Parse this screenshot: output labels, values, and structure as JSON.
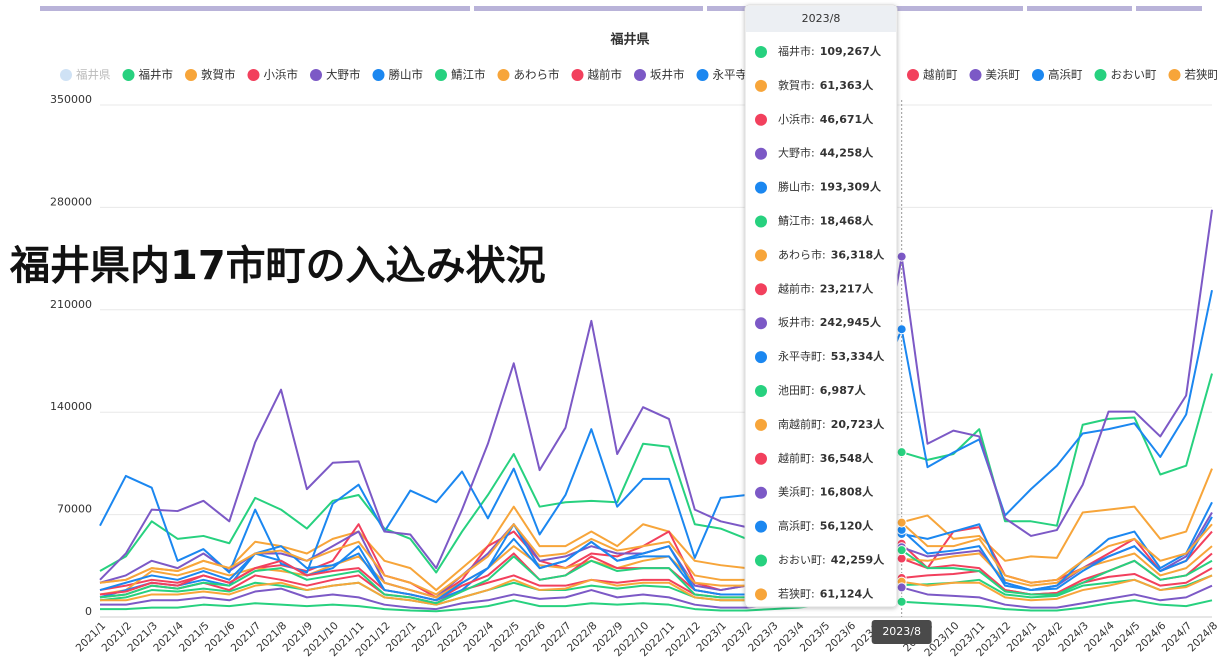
{
  "chart_data": {
    "type": "line",
    "title": "福井県",
    "annotation": "福井県内17市町の入込み状況",
    "categories": [
      "2021/1",
      "2021/2",
      "2021/3",
      "2021/4",
      "2021/5",
      "2021/6",
      "2021/7",
      "2021/8",
      "2021/9",
      "2021/10",
      "2021/11",
      "2021/12",
      "2022/1",
      "2022/2",
      "2022/3",
      "2022/4",
      "2022/5",
      "2022/6",
      "2022/7",
      "2022/8",
      "2022/9",
      "2022/10",
      "2022/11",
      "2022/12",
      "2023/1",
      "2023/2",
      "2023/3",
      "2023/4",
      "2023/5",
      "2023/6",
      "2023/7",
      "2023/8",
      "2023/9",
      "2023/10",
      "2023/11",
      "2023/12",
      "2024/1",
      "2024/2",
      "2024/3",
      "2024/4",
      "2024/5",
      "2024/6",
      "2024/7",
      "2024/8"
    ],
    "ylim": [
      0,
      350000
    ],
    "yticks": [
      0,
      70000,
      140000,
      210000,
      280000,
      350000
    ],
    "grid": true,
    "legend": {
      "position": "top",
      "hidden": [
        {
          "name": "福井県",
          "color": "#cfe2f5"
        }
      ]
    },
    "series": [
      {
        "name": "福井市",
        "color": "#27d17f",
        "values": [
          28000,
          38000,
          62000,
          50000,
          52000,
          47000,
          78000,
          70000,
          57000,
          76000,
          80000,
          57000,
          50000,
          27000,
          55000,
          80000,
          108000,
          72000,
          75000,
          76000,
          75000,
          115000,
          113000,
          60000,
          57000,
          50000,
          55000,
          70000,
          85000,
          95000,
          100000,
          109267,
          104000,
          108000,
          125000,
          62000,
          62000,
          59000,
          128000,
          132000,
          133000,
          94000,
          100000,
          163000
        ]
      },
      {
        "name": "敦賀市",
        "color": "#f7a53a",
        "values": [
          20000,
          22000,
          30000,
          28000,
          35000,
          30000,
          48000,
          45000,
          40000,
          50000,
          55000,
          35000,
          30000,
          15000,
          30000,
          45000,
          72000,
          45000,
          45000,
          55000,
          45000,
          60000,
          55000,
          35000,
          32000,
          30000,
          35000,
          40000,
          50000,
          55000,
          58000,
          61363,
          66000,
          50000,
          52000,
          35000,
          38000,
          37000,
          68000,
          70000,
          72000,
          50000,
          55000,
          98000
        ]
      },
      {
        "name": "小浜市",
        "color": "#f2405d",
        "values": [
          15000,
          18000,
          22000,
          20000,
          25000,
          20000,
          30000,
          32000,
          28000,
          35000,
          60000,
          25000,
          20000,
          10000,
          22000,
          45000,
          55000,
          35000,
          30000,
          40000,
          38000,
          45000,
          55000,
          20000,
          15000,
          18000,
          22000,
          25000,
          35000,
          40000,
          42000,
          46671,
          30000,
          55000,
          58000,
          25000,
          20000,
          22000,
          30000,
          40000,
          50000,
          28000,
          35000,
          55000
        ]
      },
      {
        "name": "大野市",
        "color": "#7c59c6",
        "values": [
          20000,
          25000,
          35000,
          30000,
          40000,
          28000,
          40000,
          40000,
          35000,
          45000,
          55000,
          20000,
          15000,
          10000,
          25000,
          40000,
          60000,
          35000,
          38000,
          45000,
          40000,
          40000,
          45000,
          18000,
          15000,
          18000,
          25000,
          30000,
          38000,
          40000,
          42000,
          44258,
          38000,
          40000,
          42000,
          20000,
          15000,
          18000,
          30000,
          38000,
          45000,
          28000,
          38000,
          68000
        ]
      },
      {
        "name": "勝山市",
        "color": "#1b87f0",
        "values": [
          59000,
          93000,
          85000,
          35000,
          43000,
          27000,
          70000,
          33000,
          27000,
          74000,
          87000,
          55000,
          83000,
          75000,
          96000,
          64000,
          98000,
          53000,
          80000,
          125000,
          72000,
          91000,
          91000,
          37000,
          78000,
          80000,
          82000,
          60000,
          100000,
          120000,
          150000,
          193309,
          99000,
          109000,
          118000,
          66000,
          84000,
          100000,
          122000,
          125000,
          129000,
          106000,
          135000,
          220000
        ]
      },
      {
        "name": "鯖江市",
        "color": "#27d17f",
        "values": [
          8000,
          10000,
          15000,
          14000,
          16000,
          14000,
          20000,
          18000,
          15000,
          18000,
          20000,
          10000,
          8000,
          5000,
          10000,
          15000,
          20000,
          15000,
          15000,
          18000,
          16000,
          18000,
          17000,
          10000,
          8000,
          8000,
          10000,
          12000,
          15000,
          16000,
          17000,
          18468,
          19000,
          20000,
          22000,
          12000,
          10000,
          11000,
          18000,
          20000,
          22000,
          15000,
          18000,
          25000
        ]
      },
      {
        "name": "あわら市",
        "color": "#f7a53a",
        "values": [
          12000,
          15000,
          28000,
          25000,
          30000,
          25000,
          30000,
          28000,
          25000,
          32000,
          38000,
          20000,
          15000,
          10000,
          20000,
          30000,
          45000,
          32000,
          30000,
          35000,
          30000,
          35000,
          38000,
          20000,
          18000,
          18000,
          22000,
          25000,
          30000,
          32000,
          34000,
          36318,
          35000,
          38000,
          40000,
          22000,
          18000,
          20000,
          30000,
          35000,
          40000,
          25000,
          30000,
          45000
        ]
      },
      {
        "name": "越前市",
        "color": "#f2405d",
        "values": [
          10000,
          12000,
          18000,
          16000,
          20000,
          15000,
          25000,
          22000,
          18000,
          22000,
          25000,
          12000,
          10000,
          6000,
          15000,
          20000,
          25000,
          18000,
          18000,
          22000,
          20000,
          22000,
          22000,
          12000,
          10000,
          10000,
          14000,
          16000,
          20000,
          22000,
          22000,
          23217,
          25000,
          26000,
          28000,
          15000,
          12000,
          13000,
          20000,
          24000,
          26000,
          18000,
          20000,
          30000
        ]
      },
      {
        "name": "坂井市",
        "color": "#7c59c6",
        "values": [
          22000,
          40000,
          70000,
          69000,
          76000,
          62000,
          116000,
          152000,
          84000,
          102000,
          103000,
          55000,
          53000,
          30000,
          70000,
          115000,
          170000,
          97000,
          126000,
          199000,
          108000,
          140000,
          132000,
          70000,
          62000,
          58000,
          60000,
          90000,
          150000,
          120000,
          140000,
          242945,
          115000,
          124000,
          120000,
          64000,
          52000,
          56000,
          87000,
          137000,
          137000,
          120000,
          148000,
          275000
        ]
      },
      {
        "name": "永平寺町",
        "color": "#1b87f0",
        "values": [
          10000,
          15000,
          20000,
          18000,
          22000,
          18000,
          40000,
          35000,
          25000,
          30000,
          45000,
          15000,
          12000,
          8000,
          15000,
          30000,
          60000,
          30000,
          35000,
          48000,
          35000,
          40000,
          45000,
          15000,
          12000,
          12000,
          18000,
          25000,
          35000,
          45000,
          50000,
          53334,
          50000,
          55000,
          60000,
          20000,
          15000,
          18000,
          35000,
          50000,
          55000,
          30000,
          40000,
          75000
        ]
      },
      {
        "name": "池田町",
        "color": "#27d17f",
        "values": [
          2000,
          2000,
          3000,
          3000,
          5000,
          4000,
          6000,
          5000,
          4000,
          5000,
          4000,
          2000,
          1000,
          500,
          2000,
          4000,
          8000,
          4000,
          4000,
          6000,
          5000,
          6000,
          5000,
          2000,
          1000,
          1000,
          2000,
          3000,
          5000,
          6000,
          6500,
          6987,
          6000,
          5000,
          4000,
          2000,
          1000,
          1000,
          3000,
          6000,
          8000,
          5000,
          4000,
          8000
        ]
      },
      {
        "name": "南越前町",
        "color": "#f7a53a",
        "values": [
          8000,
          8000,
          12000,
          12000,
          14000,
          12000,
          18000,
          20000,
          15000,
          18000,
          20000,
          10000,
          8000,
          5000,
          10000,
          15000,
          22000,
          15000,
          16000,
          22000,
          18000,
          20000,
          20000,
          10000,
          8000,
          8000,
          10000,
          12000,
          15000,
          18000,
          19000,
          20723,
          18000,
          20000,
          20000,
          10000,
          8000,
          9000,
          15000,
          18000,
          22000,
          15000,
          17000,
          25000
        ]
      },
      {
        "name": "越前町",
        "color": "#f2405d",
        "values": [
          12000,
          14000,
          20000,
          18000,
          25000,
          20000,
          30000,
          35000,
          25000,
          28000,
          30000,
          15000,
          12000,
          8000,
          18000,
          25000,
          40000,
          22000,
          25000,
          38000,
          30000,
          30000,
          30000,
          15000,
          12000,
          12000,
          15000,
          20000,
          28000,
          32000,
          34000,
          36548,
          30000,
          32000,
          30000,
          15000,
          12000,
          13000,
          22000,
          28000,
          35000,
          22000,
          25000,
          40000
        ]
      },
      {
        "name": "美浜町",
        "color": "#7c59c6",
        "values": [
          5000,
          5000,
          8000,
          8000,
          10000,
          8000,
          14000,
          16000,
          10000,
          12000,
          10000,
          5000,
          3000,
          2000,
          6000,
          8000,
          12000,
          9000,
          10000,
          15000,
          10000,
          12000,
          10000,
          5000,
          3000,
          3000,
          5000,
          8000,
          12000,
          14000,
          15500,
          16808,
          12000,
          11000,
          10000,
          5000,
          3000,
          3000,
          6000,
          9000,
          12000,
          8000,
          10000,
          18000
        ]
      },
      {
        "name": "高浜町",
        "color": "#1b87f0",
        "values": [
          15000,
          20000,
          25000,
          22000,
          28000,
          22000,
          40000,
          45000,
          30000,
          32000,
          40000,
          15000,
          12000,
          8000,
          20000,
          30000,
          50000,
          30000,
          35000,
          48000,
          35000,
          38000,
          38000,
          15000,
          12000,
          12000,
          18000,
          25000,
          38000,
          48000,
          52000,
          56120,
          40000,
          42000,
          45000,
          18000,
          15000,
          16000,
          28000,
          38000,
          45000,
          28000,
          35000,
          65000
        ]
      },
      {
        "name": "おおい町",
        "color": "#27d17f",
        "values": [
          10000,
          12000,
          18000,
          16000,
          20000,
          18000,
          28000,
          30000,
          22000,
          25000,
          28000,
          12000,
          10000,
          6000,
          14000,
          22000,
          38000,
          22000,
          25000,
          35000,
          28000,
          30000,
          30000,
          12000,
          10000,
          10000,
          14000,
          20000,
          30000,
          36000,
          40000,
          42259,
          30000,
          30000,
          28000,
          14000,
          12000,
          12000,
          20000,
          28000,
          35000,
          22000,
          25000,
          35000
        ]
      },
      {
        "name": "若狭町",
        "color": "#f7a53a",
        "values": [
          20000,
          22000,
          30000,
          28000,
          35000,
          30000,
          40000,
          42000,
          35000,
          42000,
          48000,
          25000,
          20000,
          12000,
          25000,
          38000,
          60000,
          38000,
          40000,
          50000,
          42000,
          45000,
          48000,
          25000,
          22000,
          22000,
          28000,
          35000,
          45000,
          52000,
          56000,
          61124,
          45000,
          45000,
          50000,
          25000,
          20000,
          22000,
          35000,
          45000,
          50000,
          35000,
          40000,
          60000
        ]
      }
    ],
    "tooltip": {
      "category": "2023/8",
      "separator": ":",
      "value_labels": [
        "109,267人",
        "61,363人",
        "46,671人",
        "44,258人",
        "193,309人",
        "18,468人",
        "36,318人",
        "23,217人",
        "242,945人",
        "53,334人",
        "6,987人",
        "20,723人",
        "36,548人",
        "16,808人",
        "56,120人",
        "42,259人",
        "61,124人"
      ]
    }
  }
}
